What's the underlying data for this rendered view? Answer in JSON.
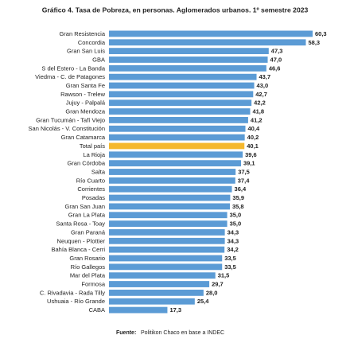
{
  "chart_data": {
    "type": "bar",
    "orientation": "horizontal",
    "title": "Gráfico 4. Tasa de Pobreza, en personas. Aglomerados urbanos. 1º semestre 2023",
    "categories": [
      "Gran Resistencia",
      "Concordia",
      "Gran San Luis",
      "GBA",
      "S del Estero - La Banda",
      "Viedma - C. de Patagones",
      "Gran Santa Fe",
      "Rawson - Trelew",
      "Jujuy - Palpalá",
      "Gran Mendoza",
      "Gran Tucumán - Tafí Viejo",
      "San Nicolás - V. Constitución",
      "Gran Catamarca",
      "Total país",
      "La Rioja",
      "Gran Córdoba",
      "Salta",
      "Río Cuarto",
      "Corrientes",
      "Posadas",
      "Gran San Juan",
      "Gran La Plata",
      "Santa Rosa - Toay",
      "Gran Paraná",
      "Neuquen - Plottier",
      "Bahía Blanca - Cerri",
      "Gran Rosario",
      "Río Gallegos",
      "Mar del Plata",
      "Formosa",
      "C. Rivadavia - Rada Tilly",
      "Ushuaia - Río Grande",
      "CABA"
    ],
    "values": [
      60.3,
      58.3,
      47.3,
      47.0,
      46.6,
      43.7,
      43.0,
      42.7,
      42.2,
      41.8,
      41.2,
      40.4,
      40.2,
      40.1,
      39.6,
      39.1,
      37.5,
      37.4,
      36.4,
      35.9,
      35.8,
      35.0,
      35.0,
      34.3,
      34.3,
      34.2,
      33.5,
      33.5,
      31.5,
      29.7,
      28.0,
      25.4,
      17.3
    ],
    "value_labels": [
      "60,3",
      "58,3",
      "47,3",
      "47,0",
      "46,6",
      "43,7",
      "43,0",
      "42,7",
      "42,2",
      "41,8",
      "41,2",
      "40,4",
      "40,2",
      "40,1",
      "39,6",
      "39,1",
      "37,5",
      "37,4",
      "36,4",
      "35,9",
      "35,8",
      "35,0",
      "35,0",
      "34,3",
      "34,3",
      "34,2",
      "33,5",
      "33,5",
      "31,5",
      "29,7",
      "28,0",
      "25,4",
      "17,3"
    ],
    "colors": [
      "#5b9bd5",
      "#5b9bd5",
      "#5b9bd5",
      "#5b9bd5",
      "#5b9bd5",
      "#5b9bd5",
      "#5b9bd5",
      "#5b9bd5",
      "#5b9bd5",
      "#5b9bd5",
      "#5b9bd5",
      "#5b9bd5",
      "#5b9bd5",
      "#f5b82e",
      "#5b9bd5",
      "#5b9bd5",
      "#5b9bd5",
      "#5b9bd5",
      "#5b9bd5",
      "#5b9bd5",
      "#5b9bd5",
      "#5b9bd5",
      "#5b9bd5",
      "#5b9bd5",
      "#5b9bd5",
      "#5b9bd5",
      "#5b9bd5",
      "#5b9bd5",
      "#5b9bd5",
      "#5b9bd5",
      "#5b9bd5",
      "#5b9bd5",
      "#5b9bd5"
    ],
    "source_label": "Fuente:",
    "source": "Politikon Chaco en base a INDEC"
  }
}
